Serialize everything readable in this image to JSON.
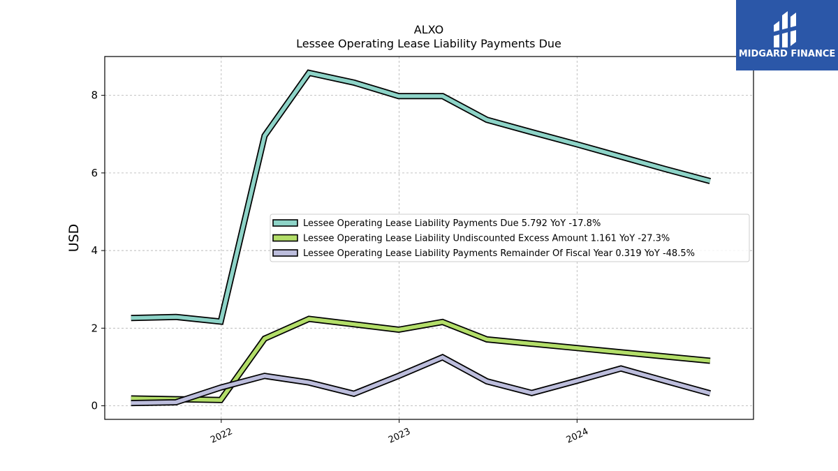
{
  "chart_data": {
    "type": "line",
    "title": "ALXO",
    "subtitle": "Lessee Operating Lease Liability Payments Due",
    "ylabel": "USD",
    "xlabel": "",
    "ylim": [
      -0.35,
      9.0
    ],
    "xlim": [
      "2021-05-07",
      "2024-12-28"
    ],
    "yticks": [
      0,
      2,
      4,
      6,
      8
    ],
    "xticks": [
      {
        "date": "2022-01-01",
        "label": "2022"
      },
      {
        "date": "2023-01-01",
        "label": "2023"
      },
      {
        "date": "2024-01-01",
        "label": "2024"
      }
    ],
    "grid": true,
    "legend_position": "center-right",
    "x": [
      "2021-06-30",
      "2021-09-30",
      "2021-12-31",
      "2022-03-31",
      "2022-06-30",
      "2022-09-30",
      "2022-12-31",
      "2023-03-31",
      "2023-06-30",
      "2023-09-30",
      "2023-12-31",
      "2024-03-31",
      "2024-06-30",
      "2024-09-30"
    ],
    "series": [
      {
        "name": "Lessee Operating Lease Liability Payments Due",
        "legend_label": "Lessee Operating Lease Liability Payments Due  5.792 YoY -17.8%",
        "color": "#8dd3c7",
        "values": [
          2.26,
          2.29,
          2.17,
          6.96,
          8.58,
          8.33,
          7.98,
          7.98,
          7.37,
          7.05,
          6.74,
          6.42,
          6.1,
          5.79
        ]
      },
      {
        "name": "Lessee Operating Lease Liability Undiscounted Excess Amount",
        "legend_label": "Lessee Operating Lease Liability Undiscounted Excess Amount  1.161 YoY -27.3%",
        "color": "#b3de69",
        "values": [
          0.19,
          0.17,
          0.15,
          1.73,
          2.24,
          2.1,
          1.96,
          2.16,
          1.71,
          1.6,
          1.49,
          1.38,
          1.27,
          1.16
        ]
      },
      {
        "name": "Lessee Operating Lease Liability Payments Remainder Of Fiscal Year",
        "legend_label": "Lessee Operating Lease Liability Payments Remainder Of Fiscal Year  0.319 YoY -48.5%",
        "color": "#bcbddc",
        "values": [
          0.07,
          0.09,
          0.47,
          0.77,
          0.6,
          0.31,
          0.77,
          1.25,
          0.63,
          0.33,
          0.64,
          0.96,
          0.64,
          0.32
        ]
      }
    ]
  },
  "logo": {
    "text": "MIDGARD FINANCE",
    "background": "#2b57a8",
    "icon": "midgard-logo-icon"
  }
}
